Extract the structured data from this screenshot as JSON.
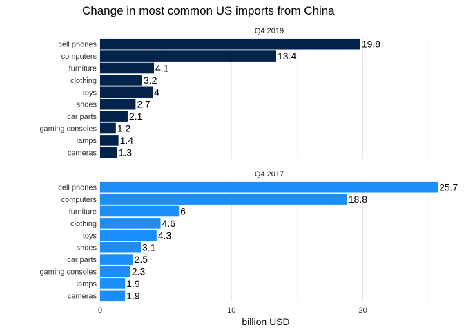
{
  "chart_data": {
    "type": "bar",
    "orientation": "horizontal",
    "title": "Change in most common US imports from China",
    "xlabel": "billion USD",
    "ylabel": "",
    "xlim": [
      0,
      25.7
    ],
    "x_ticks": [
      0,
      10,
      20
    ],
    "grid": true,
    "categories": [
      "cell phones",
      "computers",
      "furniture",
      "clothing",
      "toys",
      "shoes",
      "car parts",
      "gaming consoles",
      "lamps",
      "cameras"
    ],
    "panels": [
      {
        "name": "Q4 2019",
        "color": "#04234a",
        "values": [
          19.8,
          13.4,
          4.1,
          3.2,
          4,
          2.7,
          2.1,
          1.2,
          1.4,
          1.3
        ],
        "labels": [
          "19.8",
          "13.4",
          "4.1",
          "3.2",
          "4",
          "2.7",
          "2.1",
          "1.2",
          "1.4",
          "1.3"
        ]
      },
      {
        "name": "Q4 2017",
        "color": "#1a8ff9",
        "values": [
          25.7,
          18.8,
          6,
          4.6,
          4.3,
          3.1,
          2.5,
          2.3,
          1.9,
          1.9
        ],
        "labels": [
          "25.7",
          "18.8",
          "6",
          "4.6",
          "4.3",
          "3.1",
          "2.5",
          "2.3",
          "1.9",
          "1.9"
        ]
      }
    ]
  }
}
